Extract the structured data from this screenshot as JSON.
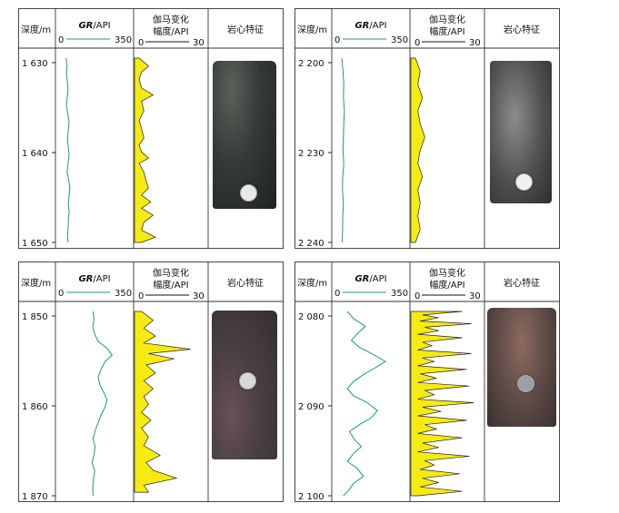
{
  "headers": {
    "depth": "深度/m",
    "gr_label_italic": "GR",
    "gr_label_rest": "/API",
    "gamma_line1": "伽马变化",
    "gamma_line2": "幅度/API",
    "core": "岩心特征"
  },
  "colors": {
    "gr_line": "#1aa35b",
    "gamma_fill": "#f5ea12",
    "border": "#333333"
  },
  "chart_data": [
    {
      "type": "line",
      "panel": "top-left",
      "depth_ticks": [
        "1 630",
        "1 640",
        "1 650"
      ],
      "depth_range": [
        1629.6,
        1650.6
      ],
      "gr_scale": {
        "min_label": "0",
        "max_label": "350",
        "range": [
          0,
          350
        ]
      },
      "gamma_scale": {
        "min_label": "0",
        "max_label": "30",
        "range": [
          0,
          30
        ]
      },
      "gr": [
        [
          1629.6,
          35
        ],
        [
          1630.5,
          40
        ],
        [
          1631.4,
          37
        ],
        [
          1632.3,
          42
        ],
        [
          1633.2,
          45
        ],
        [
          1634.2,
          40
        ],
        [
          1635.1,
          37
        ],
        [
          1636.0,
          44
        ],
        [
          1636.9,
          50
        ],
        [
          1637.9,
          46
        ],
        [
          1638.8,
          42
        ],
        [
          1639.7,
          46
        ],
        [
          1640.6,
          50
        ],
        [
          1641.6,
          45
        ],
        [
          1642.5,
          40
        ],
        [
          1643.4,
          47
        ],
        [
          1644.3,
          54
        ],
        [
          1645.3,
          50
        ],
        [
          1646.2,
          46
        ],
        [
          1647.1,
          50
        ],
        [
          1648.0,
          47
        ],
        [
          1649.0,
          45
        ],
        [
          1649.9,
          42
        ],
        [
          1650.6,
          45
        ]
      ],
      "gamma": [
        [
          1629.6,
          2
        ],
        [
          1630.5,
          6
        ],
        [
          1631.2,
          3
        ],
        [
          1632.0,
          2
        ],
        [
          1633.0,
          3
        ],
        [
          1633.8,
          8
        ],
        [
          1634.5,
          3
        ],
        [
          1635.6,
          4
        ],
        [
          1636.7,
          2
        ],
        [
          1637.6,
          3
        ],
        [
          1638.7,
          4
        ],
        [
          1639.5,
          2
        ],
        [
          1640.3,
          3
        ],
        [
          1641.0,
          6
        ],
        [
          1641.6,
          2
        ],
        [
          1642.6,
          4
        ],
        [
          1643.6,
          5
        ],
        [
          1644.4,
          6
        ],
        [
          1645.2,
          3
        ],
        [
          1646.0,
          7
        ],
        [
          1646.7,
          3
        ],
        [
          1647.5,
          8
        ],
        [
          1648.3,
          4
        ],
        [
          1649.2,
          3
        ],
        [
          1650.0,
          9
        ],
        [
          1650.6,
          3
        ]
      ]
    },
    {
      "type": "line",
      "panel": "top-right",
      "depth_ticks": [
        "2 200",
        "2 230",
        "2 240"
      ],
      "depth_range": [
        2199.0,
        2241.0
      ],
      "gr_scale": {
        "min_label": "0",
        "max_label": "350",
        "range": [
          0,
          350
        ]
      },
      "gamma_scale": {
        "min_label": "0",
        "max_label": "30",
        "range": [
          0,
          30
        ]
      },
      "gr": [
        [
          2199.0,
          32
        ],
        [
          2202.0,
          38
        ],
        [
          2205.0,
          42
        ],
        [
          2208.0,
          40
        ],
        [
          2211.0,
          45
        ],
        [
          2214.0,
          42
        ],
        [
          2217.0,
          40
        ],
        [
          2220.0,
          38
        ],
        [
          2223.0,
          42
        ],
        [
          2226.0,
          37
        ],
        [
          2229.0,
          35
        ],
        [
          2232.0,
          40
        ],
        [
          2235.0,
          37
        ],
        [
          2238.0,
          36
        ],
        [
          2241.0,
          34
        ]
      ],
      "gamma": [
        [
          2199.0,
          2
        ],
        [
          2202.0,
          4
        ],
        [
          2205.0,
          3
        ],
        [
          2208.0,
          5
        ],
        [
          2211.0,
          3
        ],
        [
          2214.0,
          4
        ],
        [
          2217.0,
          6
        ],
        [
          2220.0,
          4
        ],
        [
          2223.0,
          3
        ],
        [
          2226.0,
          5
        ],
        [
          2229.0,
          3
        ],
        [
          2232.0,
          4
        ],
        [
          2235.0,
          3
        ],
        [
          2238.0,
          4
        ],
        [
          2241.0,
          2
        ]
      ]
    },
    {
      "type": "line",
      "panel": "bottom-left",
      "depth_ticks": [
        "1 850",
        "1 860",
        "1 870"
      ],
      "depth_range": [
        1849.6,
        1870.6
      ],
      "gr_scale": {
        "min_label": "0",
        "max_label": "350",
        "range": [
          0,
          350
        ]
      },
      "gamma_scale": {
        "min_label": "0",
        "max_label": "30",
        "range": [
          0,
          30
        ]
      },
      "gr": [
        [
          1849.6,
          170
        ],
        [
          1850.5,
          175
        ],
        [
          1851.4,
          168
        ],
        [
          1852.3,
          180
        ],
        [
          1853.0,
          195
        ],
        [
          1853.8,
          240
        ],
        [
          1854.6,
          265
        ],
        [
          1855.3,
          230
        ],
        [
          1856.2,
          210
        ],
        [
          1857.1,
          195
        ],
        [
          1858.0,
          205
        ],
        [
          1858.9,
          225
        ],
        [
          1859.7,
          240
        ],
        [
          1860.5,
          230
        ],
        [
          1861.4,
          210
        ],
        [
          1862.3,
          195
        ],
        [
          1863.2,
          180
        ],
        [
          1864.1,
          170
        ],
        [
          1865.0,
          180
        ],
        [
          1865.9,
          175
        ],
        [
          1866.8,
          165
        ],
        [
          1867.8,
          178
        ],
        [
          1868.8,
          172
        ],
        [
          1869.7,
          168
        ],
        [
          1870.6,
          170
        ]
      ],
      "gamma": [
        [
          1849.6,
          3
        ],
        [
          1850.6,
          8
        ],
        [
          1851.5,
          4
        ],
        [
          1852.4,
          9
        ],
        [
          1853.2,
          4
        ],
        [
          1853.9,
          24
        ],
        [
          1854.4,
          6
        ],
        [
          1855.0,
          17
        ],
        [
          1855.7,
          5
        ],
        [
          1856.6,
          9
        ],
        [
          1857.5,
          4
        ],
        [
          1858.4,
          8
        ],
        [
          1859.3,
          4
        ],
        [
          1860.2,
          6
        ],
        [
          1861.1,
          3
        ],
        [
          1862.0,
          7
        ],
        [
          1862.9,
          3
        ],
        [
          1863.9,
          6
        ],
        [
          1864.9,
          4
        ],
        [
          1866.0,
          11
        ],
        [
          1866.8,
          5
        ],
        [
          1867.7,
          8
        ],
        [
          1868.6,
          18
        ],
        [
          1869.4,
          4
        ],
        [
          1870.2,
          6
        ]
      ]
    },
    {
      "type": "line",
      "panel": "bottom-right",
      "depth_ticks": [
        "2 080",
        "2 090",
        "2 100"
      ],
      "depth_range": [
        2079.6,
        2100.6
      ],
      "gr_scale": {
        "min_label": "0",
        "max_label": "350",
        "range": [
          0,
          350
        ]
      },
      "gamma_scale": {
        "min_label": "0",
        "max_label": "30",
        "range": [
          0,
          30
        ]
      },
      "gr": [
        [
          2079.6,
          60
        ],
        [
          2080.4,
          90
        ],
        [
          2081.3,
          150
        ],
        [
          2082.1,
          110
        ],
        [
          2082.9,
          80
        ],
        [
          2083.7,
          120
        ],
        [
          2084.5,
          190
        ],
        [
          2085.3,
          250
        ],
        [
          2086.0,
          200
        ],
        [
          2086.8,
          140
        ],
        [
          2087.6,
          90
        ],
        [
          2088.4,
          60
        ],
        [
          2089.2,
          90
        ],
        [
          2090.0,
          160
        ],
        [
          2090.9,
          210
        ],
        [
          2091.7,
          180
        ],
        [
          2092.5,
          120
        ],
        [
          2093.3,
          70
        ],
        [
          2094.2,
          95
        ],
        [
          2095.0,
          130
        ],
        [
          2095.8,
          90
        ],
        [
          2096.7,
          60
        ],
        [
          2097.5,
          110
        ],
        [
          2098.4,
          140
        ],
        [
          2099.2,
          90
        ],
        [
          2099.9,
          70
        ],
        [
          2100.6,
          40
        ]
      ],
      "gamma": [
        [
          2079.6,
          22
        ],
        [
          2080.0,
          5
        ],
        [
          2080.3,
          12
        ],
        [
          2080.7,
          4
        ],
        [
          2081.0,
          26
        ],
        [
          2081.4,
          6
        ],
        [
          2081.8,
          12
        ],
        [
          2082.2,
          3
        ],
        [
          2082.6,
          22
        ],
        [
          2083.1,
          5
        ],
        [
          2083.5,
          9
        ],
        [
          2084.0,
          3
        ],
        [
          2084.4,
          26
        ],
        [
          2084.9,
          5
        ],
        [
          2085.3,
          10
        ],
        [
          2085.8,
          3
        ],
        [
          2086.2,
          24
        ],
        [
          2086.7,
          4
        ],
        [
          2087.2,
          11
        ],
        [
          2087.7,
          3
        ],
        [
          2088.1,
          25
        ],
        [
          2088.6,
          6
        ],
        [
          2089.1,
          10
        ],
        [
          2089.6,
          3
        ],
        [
          2090.0,
          27
        ],
        [
          2090.5,
          5
        ],
        [
          2091.0,
          13
        ],
        [
          2091.5,
          3
        ],
        [
          2092.0,
          24
        ],
        [
          2092.5,
          6
        ],
        [
          2093.0,
          11
        ],
        [
          2093.5,
          3
        ],
        [
          2094.0,
          22
        ],
        [
          2094.6,
          5
        ],
        [
          2095.1,
          12
        ],
        [
          2095.6,
          3
        ],
        [
          2096.1,
          25
        ],
        [
          2096.6,
          6
        ],
        [
          2097.1,
          10
        ],
        [
          2097.6,
          4
        ],
        [
          2098.1,
          21
        ],
        [
          2098.6,
          5
        ],
        [
          2099.1,
          12
        ],
        [
          2099.6,
          4
        ],
        [
          2100.1,
          22
        ],
        [
          2100.6,
          3
        ]
      ]
    }
  ]
}
